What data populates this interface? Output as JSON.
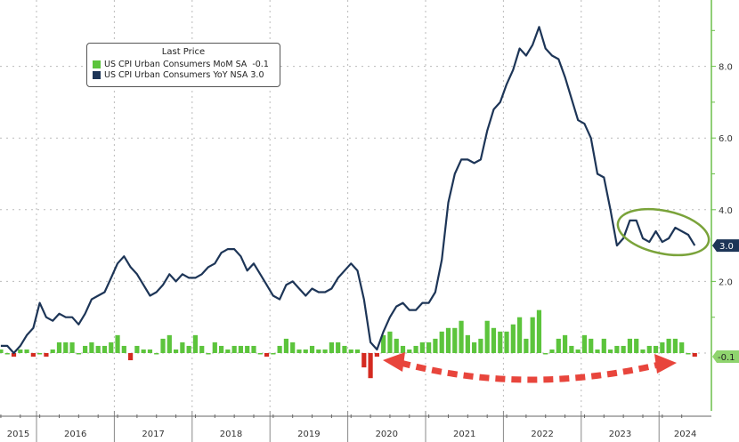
{
  "chart_data": {
    "type": "bar+line",
    "legend": {
      "title": "Last Price",
      "placement": "top-left"
    },
    "series": [
      {
        "name": "US CPI Urban Consumers MoM SA",
        "last": "-0.1",
        "type": "bar",
        "color_pos": "#5cc43c",
        "color_neg": "#d42a20",
        "values": [
          0.1,
          0.0,
          -0.1,
          0.1,
          0.1,
          -0.1,
          0.0,
          -0.1,
          0.1,
          0.3,
          0.3,
          0.3,
          0.0,
          0.2,
          0.3,
          0.2,
          0.2,
          0.3,
          0.5,
          0.2,
          -0.2,
          0.2,
          0.1,
          0.1,
          0.0,
          0.4,
          0.5,
          0.1,
          0.3,
          0.2,
          0.5,
          0.2,
          0.0,
          0.3,
          0.2,
          0.1,
          0.2,
          0.2,
          0.2,
          0.2,
          0.0,
          -0.1,
          0.0,
          0.2,
          0.4,
          0.3,
          0.1,
          0.1,
          0.2,
          0.1,
          0.1,
          0.3,
          0.3,
          0.2,
          0.1,
          0.1,
          -0.4,
          -0.7,
          -0.1,
          0.5,
          0.6,
          0.4,
          0.2,
          0.1,
          0.2,
          0.3,
          0.3,
          0.4,
          0.6,
          0.7,
          0.7,
          0.9,
          0.5,
          0.3,
          0.4,
          0.9,
          0.7,
          0.6,
          0.6,
          0.8,
          1.0,
          0.4,
          1.0,
          1.2,
          0.0,
          0.1,
          0.4,
          0.5,
          0.2,
          0.1,
          0.5,
          0.4,
          0.1,
          0.4,
          0.1,
          0.2,
          0.2,
          0.4,
          0.4,
          0.1,
          0.2,
          0.2,
          0.3,
          0.4,
          0.4,
          0.3,
          0.0,
          -0.1
        ]
      },
      {
        "name": "US CPI Urban Consumers YoY NSA",
        "last": "3.0",
        "type": "line",
        "color": "#1d3557",
        "values": [
          0.2,
          0.2,
          0.0,
          0.2,
          0.5,
          0.7,
          1.4,
          1.0,
          0.9,
          1.1,
          1.0,
          1.0,
          0.8,
          1.1,
          1.5,
          1.6,
          1.7,
          2.1,
          2.5,
          2.7,
          2.4,
          2.2,
          1.9,
          1.6,
          1.7,
          1.9,
          2.2,
          2.0,
          2.2,
          2.1,
          2.1,
          2.2,
          2.4,
          2.5,
          2.8,
          2.9,
          2.9,
          2.7,
          2.3,
          2.5,
          2.2,
          1.9,
          1.6,
          1.5,
          1.9,
          2.0,
          1.8,
          1.6,
          1.8,
          1.7,
          1.7,
          1.8,
          2.1,
          2.3,
          2.5,
          2.3,
          1.5,
          0.3,
          0.1,
          0.6,
          1.0,
          1.3,
          1.4,
          1.2,
          1.2,
          1.4,
          1.4,
          1.7,
          2.6,
          4.2,
          5.0,
          5.4,
          5.4,
          5.3,
          5.4,
          6.2,
          6.8,
          7.0,
          7.5,
          7.9,
          8.5,
          8.3,
          8.6,
          9.1,
          8.5,
          8.3,
          8.2,
          7.7,
          7.1,
          6.5,
          6.4,
          6.0,
          5.0,
          4.9,
          4.0,
          3.0,
          3.2,
          3.7,
          3.7,
          3.2,
          3.1,
          3.4,
          3.1,
          3.2,
          3.5,
          3.4,
          3.3,
          3.0
        ]
      }
    ],
    "x_start": "2015-07",
    "x_end": "2024-06",
    "x_frequency": "monthly",
    "x_tick_labels": [
      "2015",
      "2016",
      "2017",
      "2018",
      "2019",
      "2020",
      "2021",
      "2022",
      "2023",
      "2024"
    ],
    "y_axis": {
      "side": "right",
      "tick_labels": [
        "2.0",
        "4.0",
        "6.0",
        "8.0"
      ],
      "ylim": [
        -1.6,
        9.8
      ]
    },
    "grid": true,
    "last_value_labels": {
      "yoy": "3.0",
      "mom": "-0.1"
    },
    "annotations": [
      "green ellipse around 2023-2024 YoY plateau",
      "red dashed double arrow across 2020-2024 below zero line"
    ]
  }
}
